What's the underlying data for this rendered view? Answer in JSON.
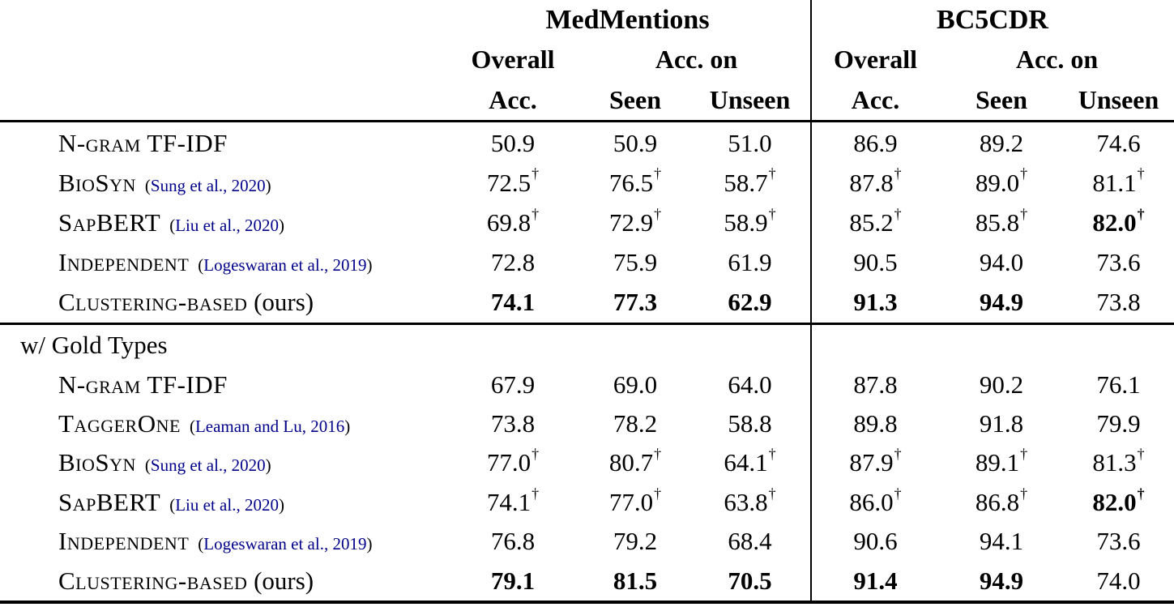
{
  "header": {
    "med": {
      "title": "MedMentions",
      "overall1": "Overall",
      "overall2": "Acc.",
      "acc_on": "Acc. on",
      "seen": "Seen",
      "unseen": "Unseen"
    },
    "bc": {
      "title": "BC5CDR",
      "overall1": "Overall",
      "overall2": "Acc.",
      "acc_on": "Acc. on",
      "seen": "Seen",
      "unseen": "Unseen"
    }
  },
  "symbols": {
    "dagger": "†",
    "paren_open": "(",
    "paren_close": ")"
  },
  "colors": {
    "citation": "#00008B",
    "text": "#000000",
    "rule": "#000000"
  },
  "sections": [
    {
      "title": "",
      "rows": [
        {
          "method": "N-gram TF-IDF",
          "suffix": "",
          "cite": "",
          "cells": [
            {
              "v": "50.9",
              "d": false,
              "b": false
            },
            {
              "v": "50.9",
              "d": false,
              "b": false
            },
            {
              "v": "51.0",
              "d": false,
              "b": false
            },
            {
              "v": "86.9",
              "d": false,
              "b": false
            },
            {
              "v": "89.2",
              "d": false,
              "b": false
            },
            {
              "v": "74.6",
              "d": false,
              "b": false
            }
          ]
        },
        {
          "method": "BioSyn",
          "suffix": "",
          "cite": "Sung et al., 2020",
          "cells": [
            {
              "v": "72.5",
              "d": true,
              "b": false
            },
            {
              "v": "76.5",
              "d": true,
              "b": false
            },
            {
              "v": "58.7",
              "d": true,
              "b": false
            },
            {
              "v": "87.8",
              "d": true,
              "b": false
            },
            {
              "v": "89.0",
              "d": true,
              "b": false
            },
            {
              "v": "81.1",
              "d": true,
              "b": false
            }
          ]
        },
        {
          "method": "SapBERT",
          "suffix": "",
          "cite": "Liu et al., 2020",
          "cells": [
            {
              "v": "69.8",
              "d": true,
              "b": false
            },
            {
              "v": "72.9",
              "d": true,
              "b": false
            },
            {
              "v": "58.9",
              "d": true,
              "b": false
            },
            {
              "v": "85.2",
              "d": true,
              "b": false
            },
            {
              "v": "85.8",
              "d": true,
              "b": false
            },
            {
              "v": "82.0",
              "d": true,
              "b": true
            }
          ]
        },
        {
          "method": "Independent",
          "suffix": "",
          "cite": "Logeswaran et al., 2019",
          "cells": [
            {
              "v": "72.8",
              "d": false,
              "b": false
            },
            {
              "v": "75.9",
              "d": false,
              "b": false
            },
            {
              "v": "61.9",
              "d": false,
              "b": false
            },
            {
              "v": "90.5",
              "d": false,
              "b": false
            },
            {
              "v": "94.0",
              "d": false,
              "b": false
            },
            {
              "v": "73.6",
              "d": false,
              "b": false
            }
          ]
        },
        {
          "method": "Clustering-based",
          "suffix": " (ours)",
          "cite": "",
          "cells": [
            {
              "v": "74.1",
              "d": false,
              "b": true
            },
            {
              "v": "77.3",
              "d": false,
              "b": true
            },
            {
              "v": "62.9",
              "d": false,
              "b": true
            },
            {
              "v": "91.3",
              "d": false,
              "b": true
            },
            {
              "v": "94.9",
              "d": false,
              "b": true
            },
            {
              "v": "73.8",
              "d": false,
              "b": false
            }
          ]
        }
      ]
    },
    {
      "title": "w/ Gold Types",
      "rows": [
        {
          "method": "N-gram TF-IDF",
          "suffix": "",
          "cite": "",
          "cells": [
            {
              "v": "67.9",
              "d": false,
              "b": false
            },
            {
              "v": "69.0",
              "d": false,
              "b": false
            },
            {
              "v": "64.0",
              "d": false,
              "b": false
            },
            {
              "v": "87.8",
              "d": false,
              "b": false
            },
            {
              "v": "90.2",
              "d": false,
              "b": false
            },
            {
              "v": "76.1",
              "d": false,
              "b": false
            }
          ]
        },
        {
          "method": "TaggerOne",
          "suffix": "",
          "cite": "Leaman and Lu, 2016",
          "cells": [
            {
              "v": "73.8",
              "d": false,
              "b": false
            },
            {
              "v": "78.2",
              "d": false,
              "b": false
            },
            {
              "v": "58.8",
              "d": false,
              "b": false
            },
            {
              "v": "89.8",
              "d": false,
              "b": false
            },
            {
              "v": "91.8",
              "d": false,
              "b": false
            },
            {
              "v": "79.9",
              "d": false,
              "b": false
            }
          ]
        },
        {
          "method": "BioSyn",
          "suffix": "",
          "cite": "Sung et al., 2020",
          "cells": [
            {
              "v": "77.0",
              "d": true,
              "b": false
            },
            {
              "v": "80.7",
              "d": true,
              "b": false
            },
            {
              "v": "64.1",
              "d": true,
              "b": false
            },
            {
              "v": "87.9",
              "d": true,
              "b": false
            },
            {
              "v": "89.1",
              "d": true,
              "b": false
            },
            {
              "v": "81.3",
              "d": true,
              "b": false
            }
          ]
        },
        {
          "method": "SapBERT",
          "suffix": "",
          "cite": "Liu et al., 2020",
          "cells": [
            {
              "v": "74.1",
              "d": true,
              "b": false
            },
            {
              "v": "77.0",
              "d": true,
              "b": false
            },
            {
              "v": "63.8",
              "d": true,
              "b": false
            },
            {
              "v": "86.0",
              "d": true,
              "b": false
            },
            {
              "v": "86.8",
              "d": true,
              "b": false
            },
            {
              "v": "82.0",
              "d": true,
              "b": true
            }
          ]
        },
        {
          "method": "Independent",
          "suffix": "",
          "cite": "Logeswaran et al., 2019",
          "cells": [
            {
              "v": "76.8",
              "d": false,
              "b": false
            },
            {
              "v": "79.2",
              "d": false,
              "b": false
            },
            {
              "v": "68.4",
              "d": false,
              "b": false
            },
            {
              "v": "90.6",
              "d": false,
              "b": false
            },
            {
              "v": "94.1",
              "d": false,
              "b": false
            },
            {
              "v": "73.6",
              "d": false,
              "b": false
            }
          ]
        },
        {
          "method": "Clustering-based",
          "suffix": " (ours)",
          "cite": "",
          "cells": [
            {
              "v": "79.1",
              "d": false,
              "b": true
            },
            {
              "v": "81.5",
              "d": false,
              "b": true
            },
            {
              "v": "70.5",
              "d": false,
              "b": true
            },
            {
              "v": "91.4",
              "d": false,
              "b": true
            },
            {
              "v": "94.9",
              "d": false,
              "b": true
            },
            {
              "v": "74.0",
              "d": false,
              "b": false
            }
          ]
        }
      ]
    }
  ]
}
